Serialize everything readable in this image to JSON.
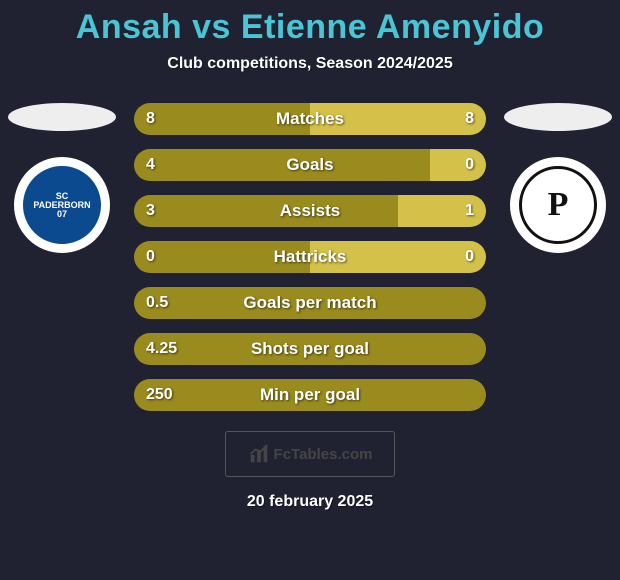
{
  "title": "Ansah vs Etienne Amenyido",
  "subtitle": "Club competitions, Season 2024/2025",
  "colors": {
    "background": "#202231",
    "title": "#49c5d6",
    "subtitle": "#ffffff",
    "barLeft": "#9a8b1f",
    "barRight": "#d3c14a",
    "barTextLeft": "#ffffff",
    "barTextRight": "#ffffff",
    "footerText": "#ffffff"
  },
  "playerLeft": {
    "flagColor": "#eeeeee",
    "badge": {
      "bg": "#ffffff",
      "ring": "#0b4a8f",
      "innerBg": "#0b4a8f",
      "text": "SC PADERBORN 07",
      "textColor": "#ffffff"
    }
  },
  "playerRight": {
    "flagColor": "#eeeeee",
    "badge": {
      "bg": "#ffffff",
      "ring": "#111111",
      "innerBg": "#ffffff",
      "text": "P",
      "textColor": "#111111"
    }
  },
  "bars": [
    {
      "label": "Matches",
      "left": "8",
      "right": "8",
      "leftPct": 50,
      "rightPct": 50,
      "showRight": true
    },
    {
      "label": "Goals",
      "left": "4",
      "right": "0",
      "leftPct": 84,
      "rightPct": 16,
      "showRight": true
    },
    {
      "label": "Assists",
      "left": "3",
      "right": "1",
      "leftPct": 75,
      "rightPct": 25,
      "showRight": true
    },
    {
      "label": "Hattricks",
      "left": "0",
      "right": "0",
      "leftPct": 50,
      "rightPct": 50,
      "showRight": true
    },
    {
      "label": "Goals per match",
      "left": "0.5",
      "right": "",
      "leftPct": 100,
      "rightPct": 0,
      "showRight": false
    },
    {
      "label": "Shots per goal",
      "left": "4.25",
      "right": "",
      "leftPct": 100,
      "rightPct": 0,
      "showRight": false
    },
    {
      "label": "Min per goal",
      "left": "250",
      "right": "",
      "leftPct": 100,
      "rightPct": 0,
      "showRight": false
    }
  ],
  "brand": "FcTables.com",
  "date": "20 february 2025"
}
